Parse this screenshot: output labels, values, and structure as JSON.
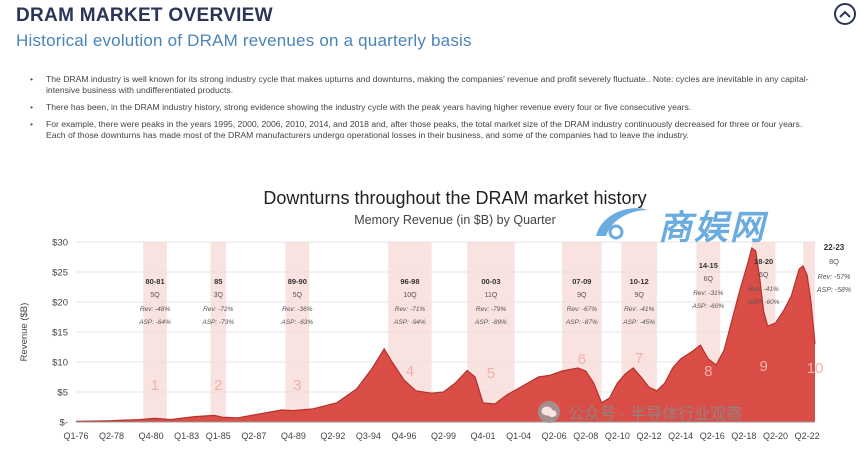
{
  "header": {
    "title": "DRAM MARKET OVERVIEW",
    "subtitle": "Historical evolution of DRAM revenues on a quarterly basis"
  },
  "icons": {
    "collapse": "chevron-up-icon",
    "wechat": "wechat-icon"
  },
  "bullets": [
    "The DRAM industry is well known for its strong industry cycle that makes upturns and downturns, making the companies' revenue and profit severely fluctuate.. Note: cycles are inevitable in any capital-intensive business with undifferentiated products.",
    "There has been, in the DRAM industry history, strong evidence showing the industry cycle with the peak years having higher revenue every four or five consecutive years.",
    "For example, there were peaks in the years  1995, 2000, 2006, 2010, 2014, and 2018 and, after those peaks, the total market size of the DRAM industry continuously decreased for three or four years. Each of those downturns has made most of the DRAM manufacturers undergo operational losses in their business, and some of the companies had to leave the industry."
  ],
  "watermark": {
    "main": "商娱网",
    "footer": "公众号 · 半导体行业观察"
  },
  "colors": {
    "area": "#d8453e",
    "band": "#f6d9d6",
    "number": "#f2b2ab",
    "heading": "#2a3558",
    "subheading": "#4a84b8"
  },
  "chart_data": {
    "type": "area",
    "title": "Downturns throughout the DRAM market history",
    "subtitle": "Memory Revenue (in $B) by Quarter",
    "ylabel": "Revenue ($B)",
    "ylim": [
      0,
      30
    ],
    "yticks": [
      "$-",
      "$5",
      "$10",
      "$15",
      "$20",
      "$25",
      "$30"
    ],
    "xlim": [
      0,
      187
    ],
    "xticks": [
      {
        "label": "Q1-76",
        "x": 0
      },
      {
        "label": "Q2-78",
        "x": 9
      },
      {
        "label": "Q4-80",
        "x": 19
      },
      {
        "label": "Q1-83",
        "x": 28
      },
      {
        "label": "Q1-85",
        "x": 36
      },
      {
        "label": "Q2-87",
        "x": 45
      },
      {
        "label": "Q4-89",
        "x": 55
      },
      {
        "label": "Q2-92",
        "x": 65
      },
      {
        "label": "Q3-94",
        "x": 74
      },
      {
        "label": "Q4-96",
        "x": 83
      },
      {
        "label": "Q2-99",
        "x": 93
      },
      {
        "label": "Q4-01",
        "x": 103
      },
      {
        "label": "Q1-04",
        "x": 112
      },
      {
        "label": "Q2-06",
        "x": 121
      },
      {
        "label": "Q2-08",
        "x": 129
      },
      {
        "label": "Q2-10",
        "x": 137
      },
      {
        "label": "Q2-12",
        "x": 145
      },
      {
        "label": "Q2-14",
        "x": 153
      },
      {
        "label": "Q2-16",
        "x": 161
      },
      {
        "label": "Q2-18",
        "x": 169
      },
      {
        "label": "Q2-20",
        "x": 177
      },
      {
        "label": "Q2-22",
        "x": 185
      }
    ],
    "series": [
      {
        "name": "Memory Revenue",
        "points": [
          [
            0,
            0.1
          ],
          [
            8,
            0.2
          ],
          [
            16,
            0.4
          ],
          [
            20,
            0.6
          ],
          [
            24,
            0.4
          ],
          [
            30,
            0.9
          ],
          [
            35,
            1.1
          ],
          [
            37,
            0.8
          ],
          [
            41,
            0.7
          ],
          [
            46,
            1.3
          ],
          [
            52,
            2.0
          ],
          [
            55,
            1.9
          ],
          [
            60,
            2.2
          ],
          [
            66,
            3.2
          ],
          [
            71,
            5.5
          ],
          [
            75,
            9.0
          ],
          [
            78,
            12.2
          ],
          [
            80,
            10.0
          ],
          [
            83,
            7.0
          ],
          [
            86,
            5.2
          ],
          [
            90,
            4.8
          ],
          [
            93,
            5.0
          ],
          [
            96,
            6.5
          ],
          [
            99,
            8.6
          ],
          [
            101,
            7.5
          ],
          [
            103,
            3.2
          ],
          [
            106,
            3.0
          ],
          [
            109,
            4.5
          ],
          [
            113,
            6.0
          ],
          [
            117,
            7.5
          ],
          [
            120,
            7.8
          ],
          [
            123,
            8.5
          ],
          [
            127,
            9.0
          ],
          [
            129,
            8.5
          ],
          [
            131,
            6.5
          ],
          [
            133,
            3.2
          ],
          [
            135,
            4.0
          ],
          [
            137,
            6.5
          ],
          [
            139,
            8.0
          ],
          [
            141,
            9.0
          ],
          [
            143,
            7.5
          ],
          [
            145,
            5.8
          ],
          [
            147,
            5.2
          ],
          [
            149,
            6.5
          ],
          [
            151,
            9.0
          ],
          [
            153,
            10.5
          ],
          [
            156,
            11.8
          ],
          [
            158,
            12.8
          ],
          [
            160,
            10.5
          ],
          [
            162,
            9.5
          ],
          [
            164,
            12.0
          ],
          [
            166,
            17.0
          ],
          [
            168,
            22.0
          ],
          [
            170,
            26.5
          ],
          [
            171,
            29.0
          ],
          [
            172,
            28.5
          ],
          [
            173,
            24.0
          ],
          [
            174,
            18.5
          ],
          [
            175,
            16.0
          ],
          [
            177,
            16.5
          ],
          [
            179,
            18.5
          ],
          [
            181,
            21.0
          ],
          [
            183,
            25.5
          ],
          [
            184,
            26.0
          ],
          [
            185,
            24.5
          ],
          [
            186,
            20.0
          ],
          [
            187,
            13.0
          ]
        ]
      }
    ],
    "downturns": [
      {
        "n": "1",
        "years": "80-81",
        "q": "5Q",
        "rev": "Rev: -48%",
        "asp": "ASP: -64%",
        "x0": 17,
        "x1": 23
      },
      {
        "n": "2",
        "years": "85",
        "q": "3Q",
        "rev": "Rev: -72%",
        "asp": "ASP: -73%",
        "x0": 34,
        "x1": 38
      },
      {
        "n": "3",
        "years": "89-90",
        "q": "5Q",
        "rev": "Rev: -36%",
        "asp": "ASP: -63%",
        "x0": 53,
        "x1": 59
      },
      {
        "n": "4",
        "years": "96-98",
        "q": "10Q",
        "rev": "Rev: -71%",
        "asp": "ASP: -94%",
        "x0": 79,
        "x1": 90
      },
      {
        "n": "5",
        "years": "00-03",
        "q": "11Q",
        "rev": "Rev: -79%",
        "asp": "ASP: -89%",
        "x0": 99,
        "x1": 111
      },
      {
        "n": "6",
        "years": "07-09",
        "q": "9Q",
        "rev": "Rev: -67%",
        "asp": "ASP: -87%",
        "x0": 123,
        "x1": 133
      },
      {
        "n": "7",
        "years": "10-12",
        "q": "9Q",
        "rev": "Rev: -41%",
        "asp": "ASP: -45%",
        "x0": 138,
        "x1": 147
      },
      {
        "n": "8",
        "years": "14-15",
        "q": "6Q",
        "rev": "Rev: -31%",
        "asp": "ASP: -60%",
        "x0": 157,
        "x1": 163
      },
      {
        "n": "9",
        "years": "18-20",
        "q": "6Q",
        "rev": "Rev: -41%",
        "asp": "ASP: -60%",
        "x0": 171,
        "x1": 177
      },
      {
        "n": "10",
        "years": "22-23",
        "q": "8Q",
        "rev": "Rev: -57%",
        "asp": "ASP: -58%",
        "x0": 184,
        "x1": 187
      }
    ]
  }
}
